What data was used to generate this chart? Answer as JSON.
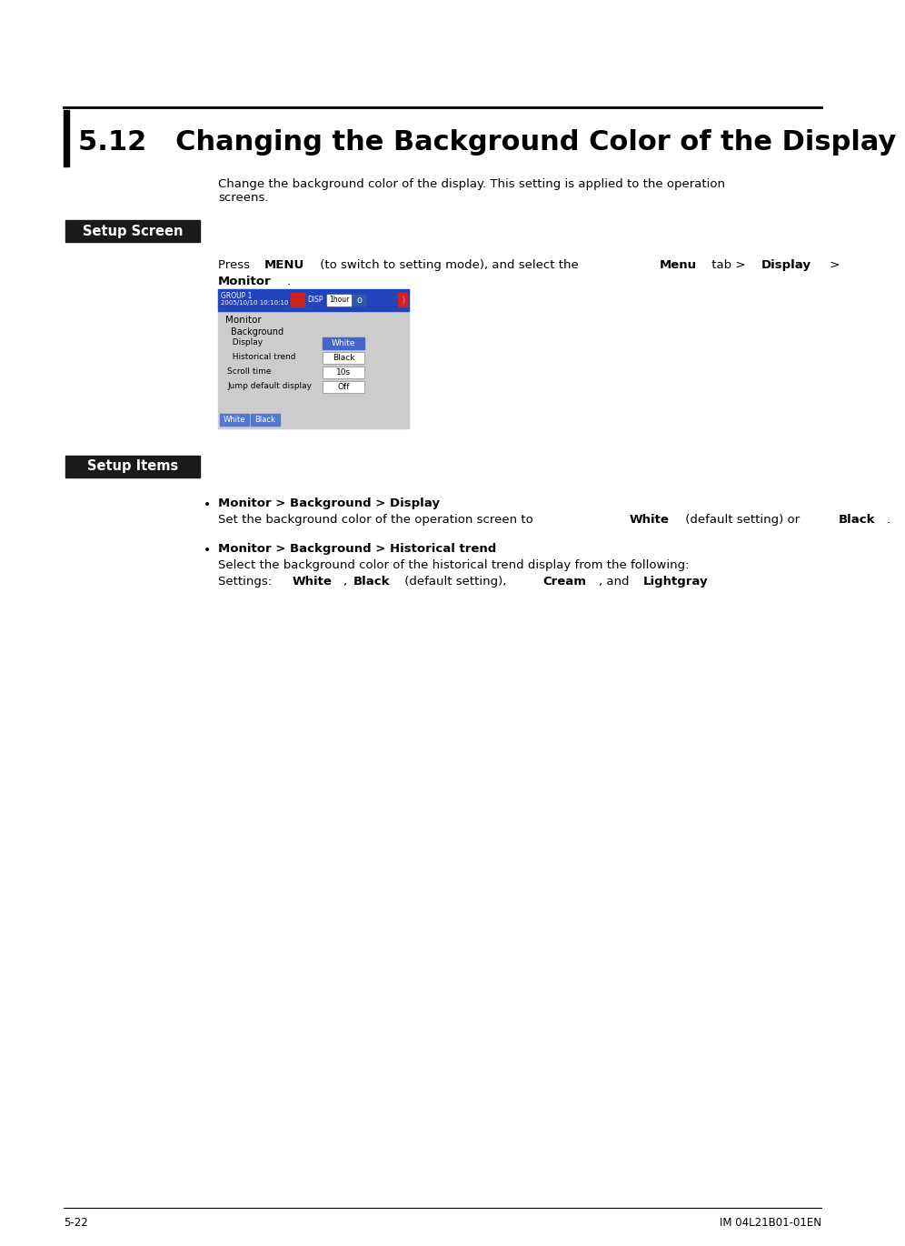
{
  "title": "5.12   Changing the Background Color of the Display",
  "page_bg": "#ffffff",
  "left_bar_color": "#000000",
  "title_fontsize": 22,
  "section_label_bg": "#1a1a1a",
  "section_label_color": "#ffffff",
  "section_label_fontsize": 10.5,
  "body_fontsize": 9.5,
  "body_text_color": "#000000",
  "intro_text": "Change the background color of the display. This setting is applied to the operation\nscreens.",
  "setup_screen_label": "Setup Screen",
  "setup_items_label": "Setup Items",
  "footer_left": "5-22",
  "footer_right": "IM 04L21B01-01EN",
  "screen_header_bg": "#2244bb",
  "screen_bg": "#c8c8c8",
  "screen_btn_bg": "#5577cc"
}
